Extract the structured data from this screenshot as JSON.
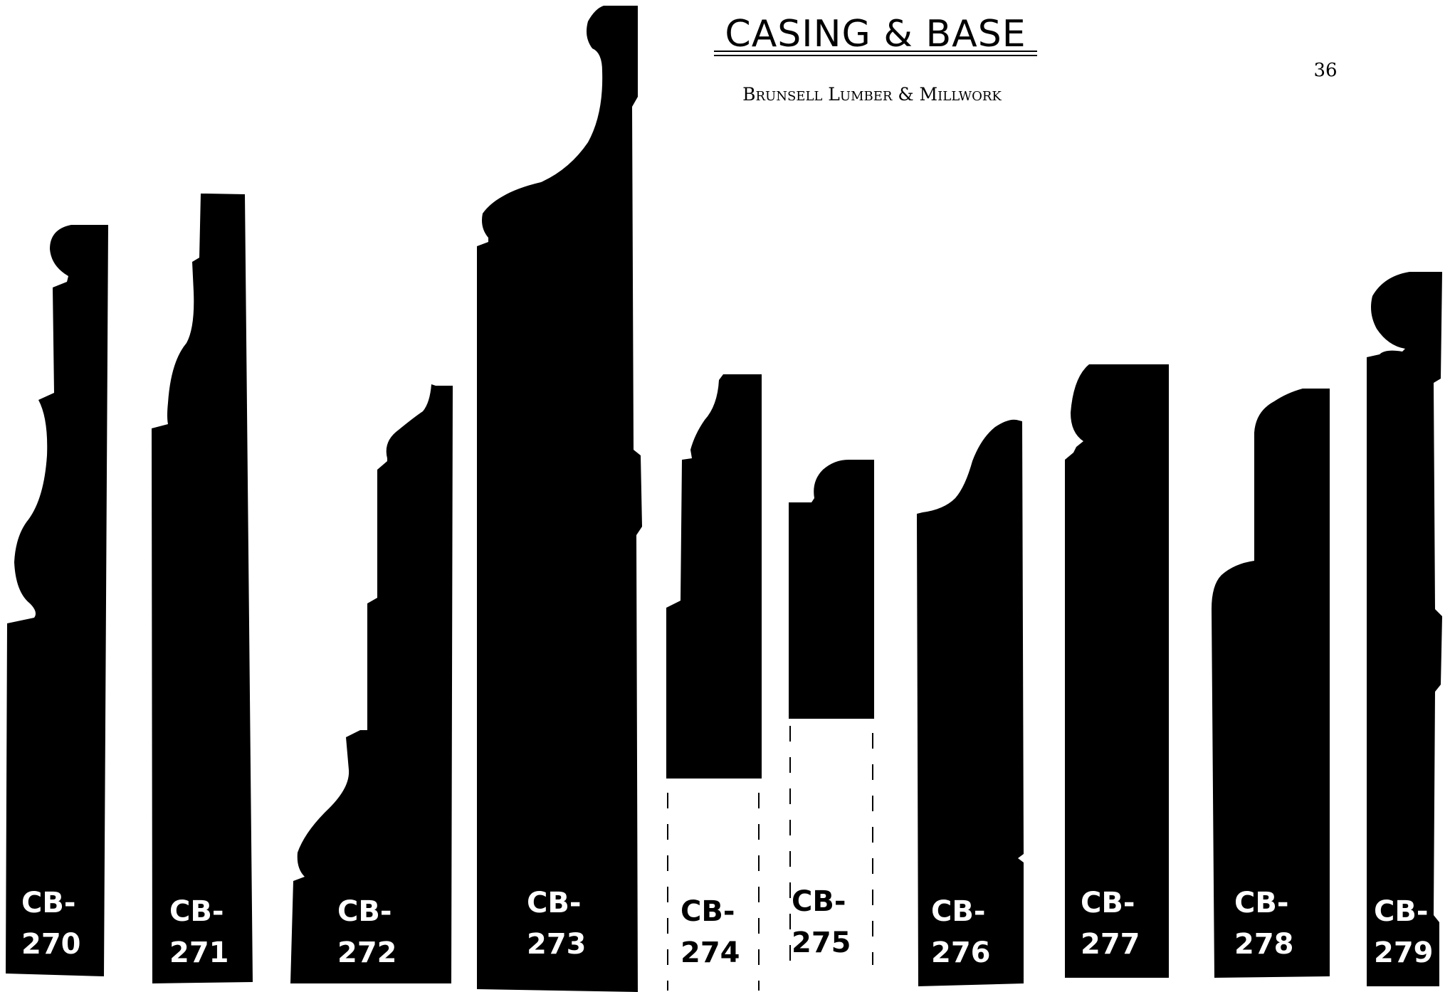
{
  "header": {
    "title": "CASING & BASE",
    "subtitle": "Brunsell Lumber & Millwork",
    "page_number": "36"
  },
  "profiles": [
    {
      "code_prefix": "CB-",
      "number": "270",
      "label_color": "#ffffff"
    },
    {
      "code_prefix": "CB-",
      "number": "271",
      "label_color": "#ffffff"
    },
    {
      "code_prefix": "CB-",
      "number": "272",
      "label_color": "#ffffff"
    },
    {
      "code_prefix": "CB-",
      "number": "273",
      "label_color": "#ffffff"
    },
    {
      "code_prefix": "CB-",
      "number": "274",
      "label_color": "#000000"
    },
    {
      "code_prefix": "CB-",
      "number": "275",
      "label_color": "#000000"
    },
    {
      "code_prefix": "CB-",
      "number": "276",
      "label_color": "#ffffff"
    },
    {
      "code_prefix": "CB-",
      "number": "277",
      "label_color": "#ffffff"
    },
    {
      "code_prefix": "CB-",
      "number": "278",
      "label_color": "#ffffff"
    },
    {
      "code_prefix": "CB-",
      "number": "279",
      "label_color": "#ffffff"
    }
  ]
}
